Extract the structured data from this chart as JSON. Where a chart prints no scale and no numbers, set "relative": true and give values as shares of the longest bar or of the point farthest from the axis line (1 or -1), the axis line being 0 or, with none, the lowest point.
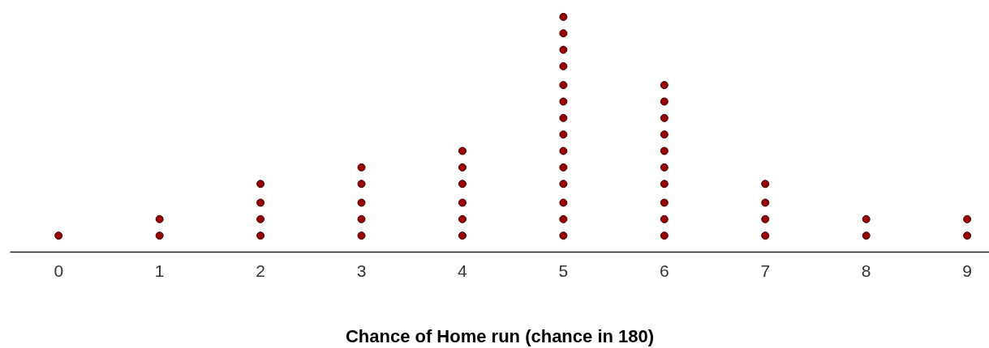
{
  "chart_data": {
    "type": "scatter",
    "xlabel": "Chance of Home run (chance in 180)",
    "tick_labels": "x",
    "grid": false,
    "marker": "circle",
    "xlim": [
      -0.48,
      9.22
    ],
    "xticks": [
      0,
      1,
      2,
      3,
      4,
      5,
      6,
      7,
      8,
      9
    ],
    "x": [
      0,
      1,
      1,
      2,
      2,
      2,
      2,
      3,
      3,
      3,
      3,
      3,
      4,
      4,
      4,
      4,
      4,
      4,
      5,
      5,
      5,
      5,
      5,
      5,
      5,
      5,
      5,
      5,
      5,
      5,
      5,
      5,
      6,
      6,
      6,
      6,
      6,
      6,
      6,
      6,
      6,
      6,
      7,
      7,
      7,
      7,
      8,
      8,
      9,
      9
    ],
    "relative": true,
    "values": [
      0.07,
      0.07,
      0.14,
      0.07,
      0.14,
      0.21,
      0.29,
      0.07,
      0.14,
      0.21,
      0.29,
      0.36,
      0.07,
      0.14,
      0.21,
      0.29,
      0.36,
      0.43,
      0.07,
      0.14,
      0.21,
      0.29,
      0.36,
      0.43,
      0.5,
      0.57,
      0.64,
      0.71,
      0.79,
      0.86,
      0.93,
      1.0,
      0.07,
      0.14,
      0.21,
      0.29,
      0.36,
      0.43,
      0.5,
      0.57,
      0.64,
      0.71,
      0.07,
      0.14,
      0.21,
      0.29,
      0.07,
      0.14,
      0.07,
      0.14
    ],
    "color": "#9b0000"
  }
}
